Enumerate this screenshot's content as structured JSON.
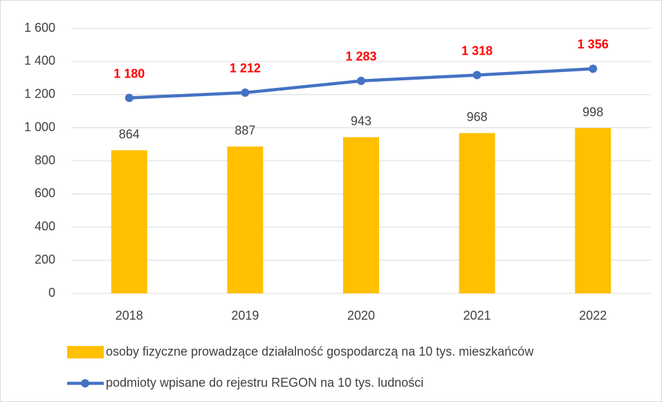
{
  "chart_data": {
    "type": "combo",
    "categories": [
      "2018",
      "2019",
      "2020",
      "2021",
      "2022"
    ],
    "series": [
      {
        "name": "osoby fizyczne prowadzące działalność gospodarczą na 10 tys. mieszkańców",
        "type": "bar",
        "color": "#FFC000",
        "values": [
          864,
          887,
          943,
          968,
          998
        ]
      },
      {
        "name": "podmioty wpisane do rejestru REGON na 10 tys. ludności",
        "type": "line",
        "color": "#4472C4",
        "label_color": "#FF0000",
        "values": [
          1180,
          1212,
          1283,
          1318,
          1356
        ],
        "value_labels": [
          "1 180",
          "1 212",
          "1 283",
          "1 318",
          "1 356"
        ]
      }
    ],
    "ylim": [
      0,
      1600
    ],
    "yticks": [
      0,
      200,
      400,
      600,
      800,
      {
        "value": 1000,
        "label": "1 000"
      },
      {
        "value": 1200,
        "label": "1 200"
      },
      {
        "value": 1400,
        "label": "1 400"
      },
      {
        "value": 1600,
        "label": "1 600"
      }
    ],
    "grid": true,
    "legend": "bottom"
  }
}
